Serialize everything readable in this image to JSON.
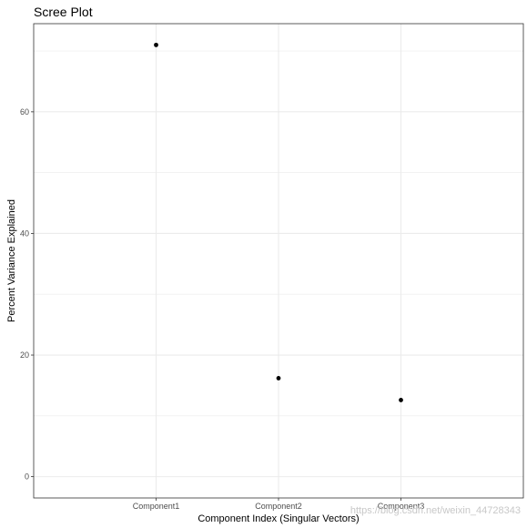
{
  "chart_data": {
    "type": "scatter",
    "title": "Scree Plot",
    "xlabel": "Component Index (Singular Vectors)",
    "ylabel": "Percent Variance Explained",
    "categories": [
      "Component1",
      "Component2",
      "Component3"
    ],
    "values": [
      71,
      16.2,
      12.6
    ],
    "ylim": [
      -3.5,
      74.5
    ],
    "yticks": [
      0,
      20,
      40,
      60
    ],
    "grid": true,
    "legend": "none",
    "point_color": "#000000",
    "grid_color": "#ebebeb",
    "panel_border_color": "#333333"
  },
  "watermark": {
    "text": "https://blog.csdn.net/weixin_44728343"
  }
}
